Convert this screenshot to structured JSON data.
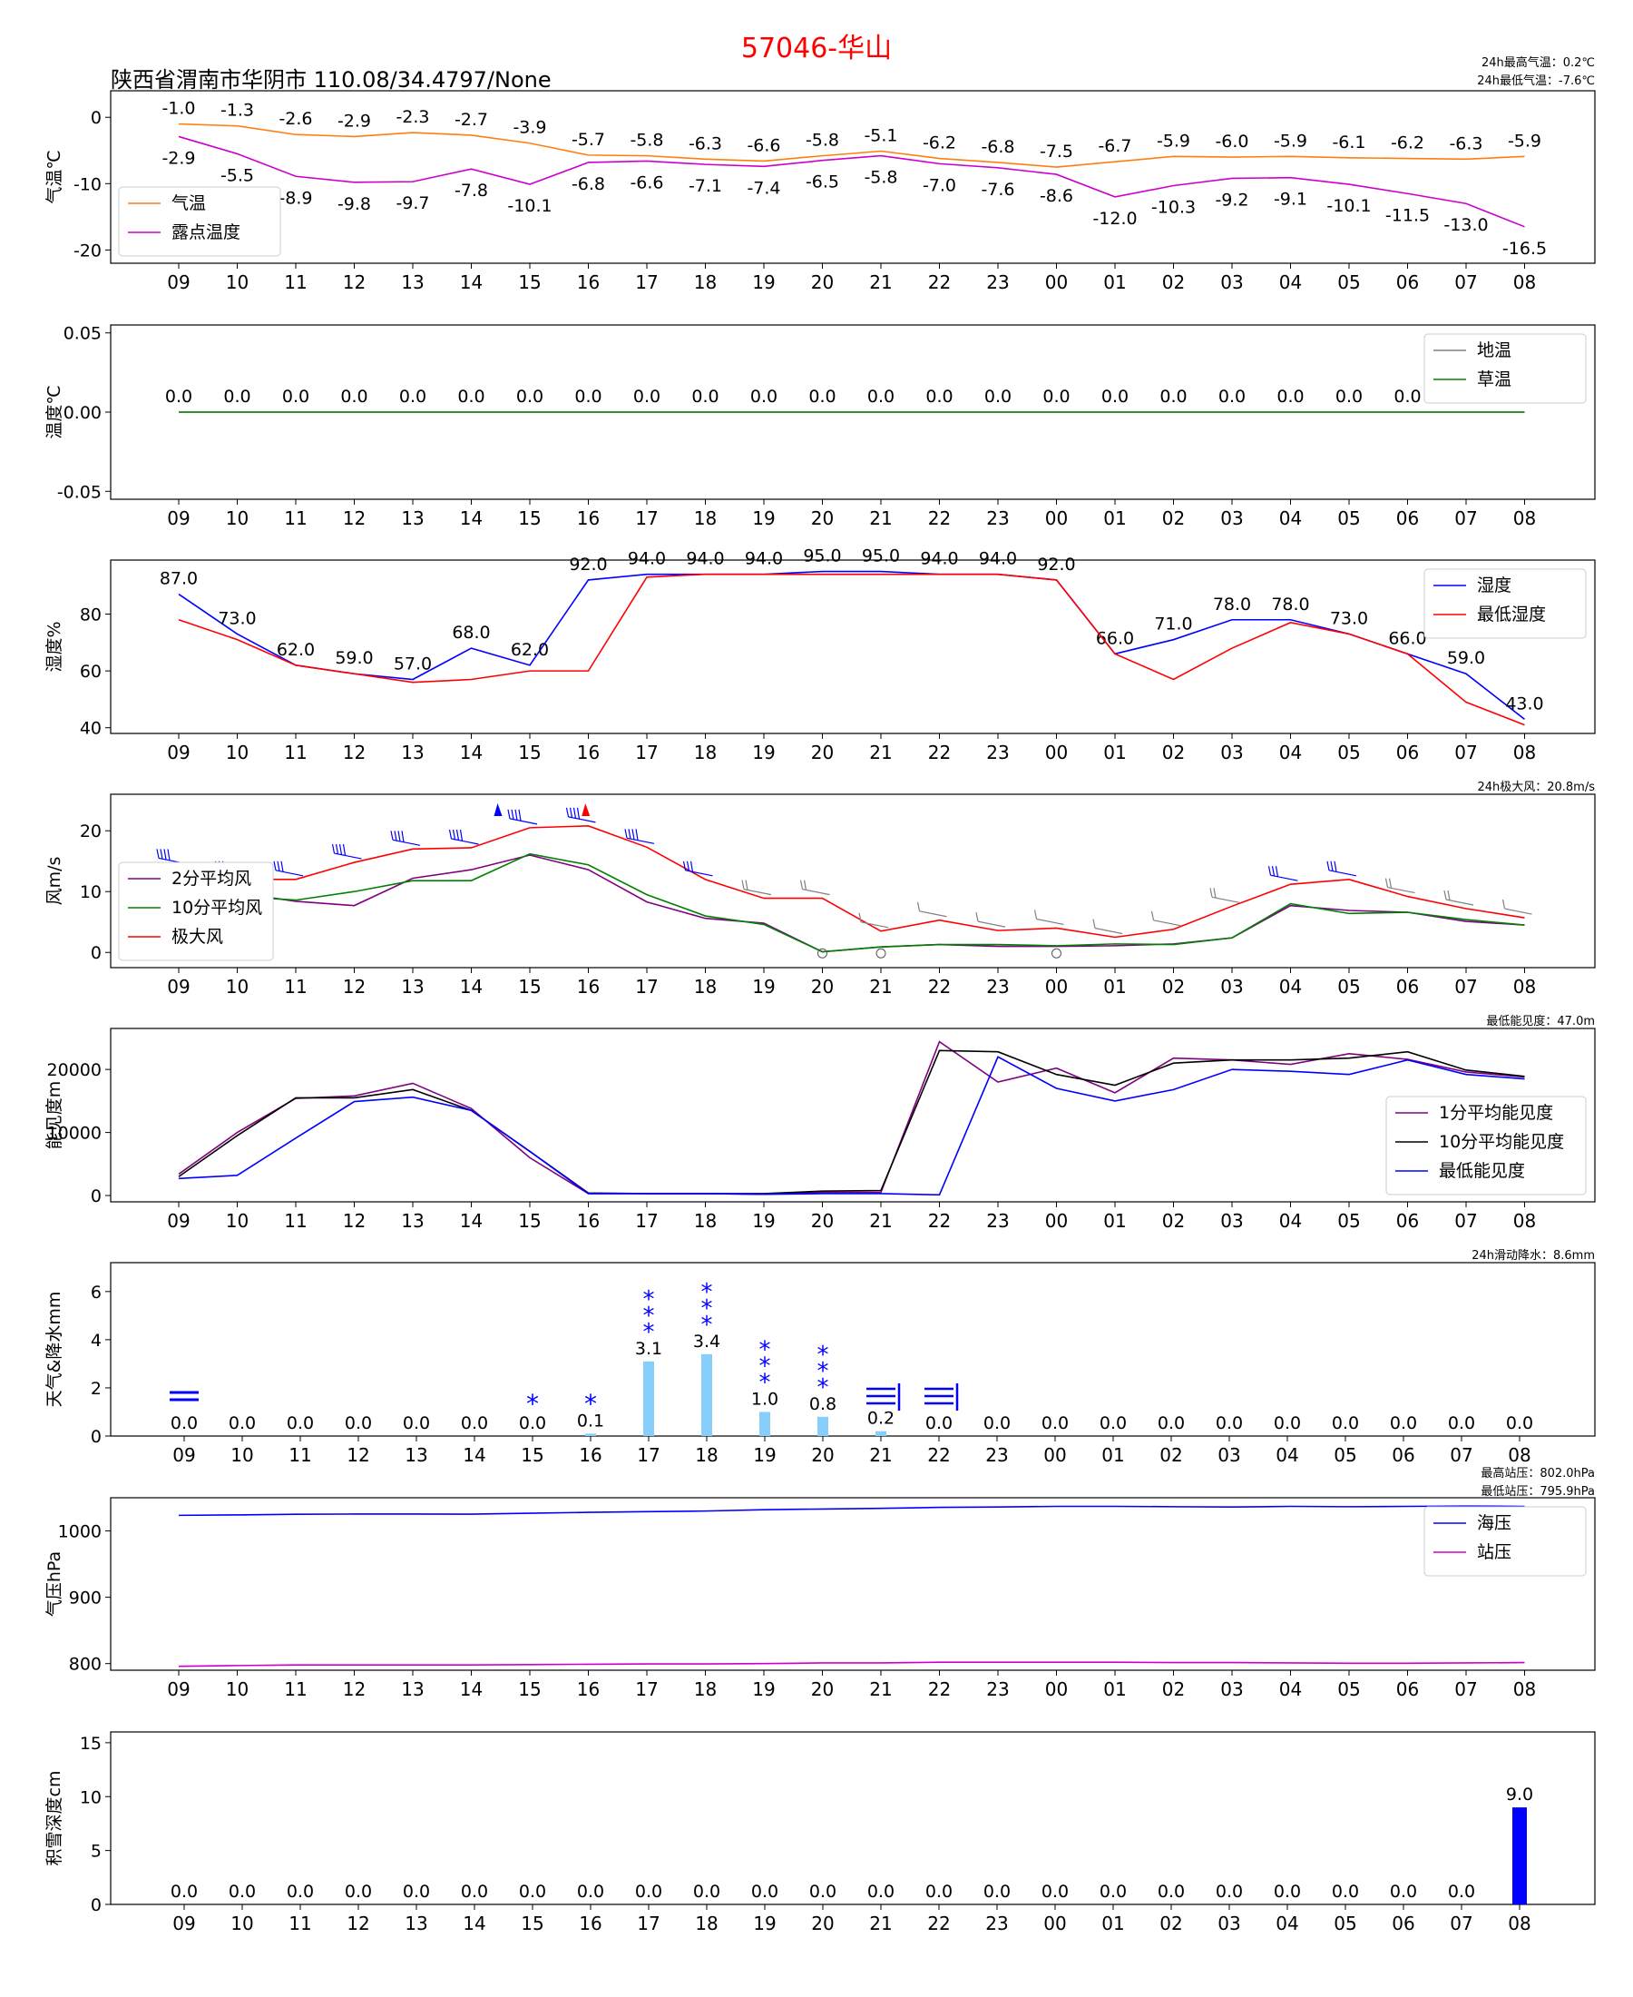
{
  "title": "57046-华山",
  "location": "陕西省渭南市华阴市  110.08/34.4797/None",
  "hours": [
    "09",
    "10",
    "11",
    "12",
    "13",
    "14",
    "15",
    "16",
    "17",
    "18",
    "19",
    "20",
    "21",
    "22",
    "23",
    "00",
    "01",
    "02",
    "03",
    "04",
    "05",
    "06",
    "07",
    "08"
  ],
  "notes": {
    "temp_max": "24h最高气温：0.2℃",
    "temp_min": "24h最低气温：-7.6℃",
    "wind_max": "24h极大风：20.8m/s",
    "vis_min": "最低能见度：47.0m",
    "precip_24h": "24h滑动降水：8.6mm",
    "press_max": "最高站压：802.0hPa",
    "press_min": "最低站压：795.9hPa"
  },
  "chart_data": [
    {
      "type": "line",
      "ylabel": "气温℃",
      "ylim": [
        -22,
        4
      ],
      "yticks": [
        0,
        -10,
        -20
      ],
      "legend": "left",
      "series": [
        {
          "name": "气温",
          "color": "#ff7f0e",
          "values": [
            -1.0,
            -1.3,
            -2.6,
            -2.9,
            -2.3,
            -2.7,
            -3.9,
            -5.7,
            -5.8,
            -6.3,
            -6.6,
            -5.8,
            -5.1,
            -6.2,
            -6.8,
            -7.5,
            -6.7,
            -5.9,
            -6.0,
            -5.9,
            -6.1,
            -6.2,
            -6.3,
            -5.9
          ],
          "label_pos": "above"
        },
        {
          "name": "露点温度",
          "color": "#cc00cc",
          "values": [
            -2.9,
            -5.5,
            -8.9,
            -9.8,
            -9.7,
            -7.8,
            -10.1,
            -6.8,
            -6.6,
            -7.1,
            -7.4,
            -6.5,
            -5.8,
            -7.0,
            -7.6,
            -8.6,
            -12.0,
            -10.3,
            -9.2,
            -9.1,
            -10.1,
            -11.5,
            -13.0,
            -16.5
          ],
          "label_pos": "below"
        }
      ]
    },
    {
      "type": "line",
      "ylabel": "温度℃",
      "ylim": [
        -0.055,
        0.055
      ],
      "yticks": [
        0.05,
        0.0,
        -0.05
      ],
      "ytick_labels": [
        "0.05",
        "0.00",
        "-0.05"
      ],
      "legend": "right",
      "series": [
        {
          "name": "地温",
          "color": "#808080",
          "values": [
            0.0,
            0.0,
            0.0,
            0.0,
            0.0,
            0.0,
            0.0,
            0.0,
            0.0,
            0.0,
            0.0,
            0.0,
            0.0,
            0.0,
            0.0,
            0.0,
            0.0,
            0.0,
            0.0,
            0.0,
            0.0,
            0.0,
            0.0,
            0.0
          ],
          "label_pos": "above"
        },
        {
          "name": "草温",
          "color": "#008000",
          "values": [
            0.0,
            0.0,
            0.0,
            0.0,
            0.0,
            0.0,
            0.0,
            0.0,
            0.0,
            0.0,
            0.0,
            0.0,
            0.0,
            0.0,
            0.0,
            0.0,
            0.0,
            0.0,
            0.0,
            0.0,
            0.0,
            0.0,
            0.0,
            0.0
          ]
        }
      ]
    },
    {
      "type": "line",
      "ylabel": "湿度%",
      "ylim": [
        38,
        99
      ],
      "yticks": [
        80,
        60,
        40
      ],
      "legend": "right",
      "series": [
        {
          "name": "湿度",
          "color": "#0000ff",
          "values": [
            87.0,
            73.0,
            62.0,
            59.0,
            57.0,
            68.0,
            62.0,
            92.0,
            94.0,
            94.0,
            94.0,
            95.0,
            95.0,
            94.0,
            94.0,
            92.0,
            66.0,
            71.0,
            78.0,
            78.0,
            73.0,
            66.0,
            59.0,
            43.0
          ],
          "label_pos": "above"
        },
        {
          "name": "最低湿度",
          "color": "#ff0000",
          "values": [
            78,
            71,
            62,
            59,
            56,
            57,
            60,
            60,
            93,
            94,
            94,
            94,
            94,
            94,
            94,
            92,
            66,
            57,
            68,
            77,
            73,
            66,
            49,
            41
          ]
        }
      ]
    },
    {
      "type": "line",
      "ylabel": "风m/s",
      "ylim": [
        -2.5,
        26
      ],
      "yticks": [
        20,
        10,
        0
      ],
      "legend": "left",
      "series": [
        {
          "name": "2分平均风",
          "color": "#800080",
          "values": [
            10.2,
            9.8,
            8.4,
            7.7,
            12.2,
            13.6,
            16.0,
            13.6,
            8.3,
            5.6,
            4.8,
            0.1,
            0.9,
            1.3,
            1.0,
            1.0,
            1.1,
            1.4,
            2.4,
            7.7,
            6.9,
            6.6,
            5.1,
            4.5
          ]
        },
        {
          "name": "10分平均风",
          "color": "#008000",
          "values": [
            9.5,
            9.2,
            8.6,
            10.0,
            11.8,
            11.8,
            16.2,
            14.4,
            9.5,
            6.0,
            4.6,
            0.1,
            0.9,
            1.3,
            1.3,
            1.1,
            1.4,
            1.3,
            2.4,
            8.0,
            6.4,
            6.6,
            5.4,
            4.5
          ]
        },
        {
          "name": "极大风",
          "color": "#ff0000",
          "values": [
            14.0,
            12.0,
            12.0,
            14.8,
            17.0,
            17.2,
            20.5,
            20.8,
            17.3,
            12.0,
            8.9,
            8.9,
            3.5,
            5.3,
            3.6,
            4.0,
            2.5,
            3.8,
            7.6,
            11.2,
            12.0,
            9.2,
            7.2,
            5.7
          ]
        }
      ],
      "wind_barb_rows": 2
    },
    {
      "type": "line",
      "ylabel": "能见度m",
      "ylim": [
        -1000,
        26500
      ],
      "yticks": [
        20000,
        10000,
        0
      ],
      "legend": "right",
      "series": [
        {
          "name": "1分平均能见度",
          "color": "#800080",
          "values": [
            3400,
            10000,
            15400,
            15800,
            17800,
            13800,
            6000,
            300,
            300,
            300,
            200,
            500,
            500,
            24400,
            18000,
            20200,
            16300,
            21800,
            21500,
            20800,
            22500,
            21600,
            19600,
            18800
          ]
        },
        {
          "name": "10分平均能见度",
          "color": "#000000",
          "values": [
            3000,
            9500,
            15500,
            15500,
            16800,
            13500,
            7000,
            400,
            300,
            300,
            300,
            700,
            800,
            23000,
            22800,
            19200,
            17500,
            21000,
            21500,
            21500,
            21800,
            22800,
            19900,
            18900
          ]
        },
        {
          "name": "最低能见度",
          "color": "#0000ff",
          "values": [
            2700,
            3200,
            9100,
            14900,
            15600,
            13500,
            7000,
            300,
            300,
            300,
            200,
            300,
            300,
            100,
            22000,
            17000,
            15000,
            16800,
            20000,
            19700,
            19200,
            21500,
            19200,
            18500
          ]
        }
      ]
    },
    {
      "type": "bar",
      "ylabel": "天气&降水mm",
      "ylim": [
        0,
        7.2
      ],
      "yticks": [
        0,
        2,
        4,
        6
      ],
      "bar_color": "#87cefa",
      "values": [
        0.0,
        0.0,
        0.0,
        0.0,
        0.0,
        0.0,
        0.0,
        0.1,
        3.1,
        3.4,
        1.0,
        0.8,
        0.2,
        0.0,
        0.0,
        0.0,
        0.0,
        0.0,
        0.0,
        0.0,
        0.0,
        0.0,
        0.0,
        0.0
      ],
      "weather_symbols": [
        "fog",
        "",
        "",
        "",
        "",
        "",
        "snow-1",
        "snow-1",
        "snow-3",
        "snow-3",
        "snow-3",
        "snow-3",
        "fog-drift",
        "fog-drift",
        "",
        "",
        "",
        "",
        "",
        "",
        "",
        "",
        "",
        ""
      ]
    },
    {
      "type": "line",
      "ylabel": "气压hPa",
      "ylim": [
        790,
        1050
      ],
      "yticks": [
        1000,
        900,
        800
      ],
      "legend": "right",
      "series": [
        {
          "name": "海压",
          "color": "#0000ff",
          "values": [
            1023.5,
            1024.1,
            1025.1,
            1025.4,
            1025.4,
            1025.3,
            1026.7,
            1028.0,
            1029.0,
            1030.0,
            1032.0,
            1033.0,
            1034.0,
            1035.5,
            1036.0,
            1037.0,
            1037.0,
            1036.5,
            1036.0,
            1037.0,
            1036.5,
            1037.0,
            1037.5,
            1037.0
          ]
        },
        {
          "name": "站压",
          "color": "#cc00cc",
          "values": [
            795.9,
            797.0,
            798.0,
            798.0,
            798.0,
            798.0,
            798.5,
            799.0,
            799.5,
            799.5,
            800.0,
            801.0,
            801.0,
            802.0,
            802.0,
            802.0,
            802.0,
            801.5,
            801.5,
            801.0,
            800.5,
            800.5,
            801.0,
            801.5
          ]
        }
      ]
    },
    {
      "type": "bar",
      "ylabel": "积雪深度cm",
      "ylim": [
        0,
        16
      ],
      "yticks": [
        0,
        5,
        10,
        15
      ],
      "bar_color": "#0000ff",
      "values": [
        0.0,
        0.0,
        0.0,
        0.0,
        0.0,
        0.0,
        0.0,
        0.0,
        0.0,
        0.0,
        0.0,
        0.0,
        0.0,
        0.0,
        0.0,
        0.0,
        0.0,
        0.0,
        0.0,
        0.0,
        0.0,
        0.0,
        0.0,
        9.0
      ]
    }
  ]
}
